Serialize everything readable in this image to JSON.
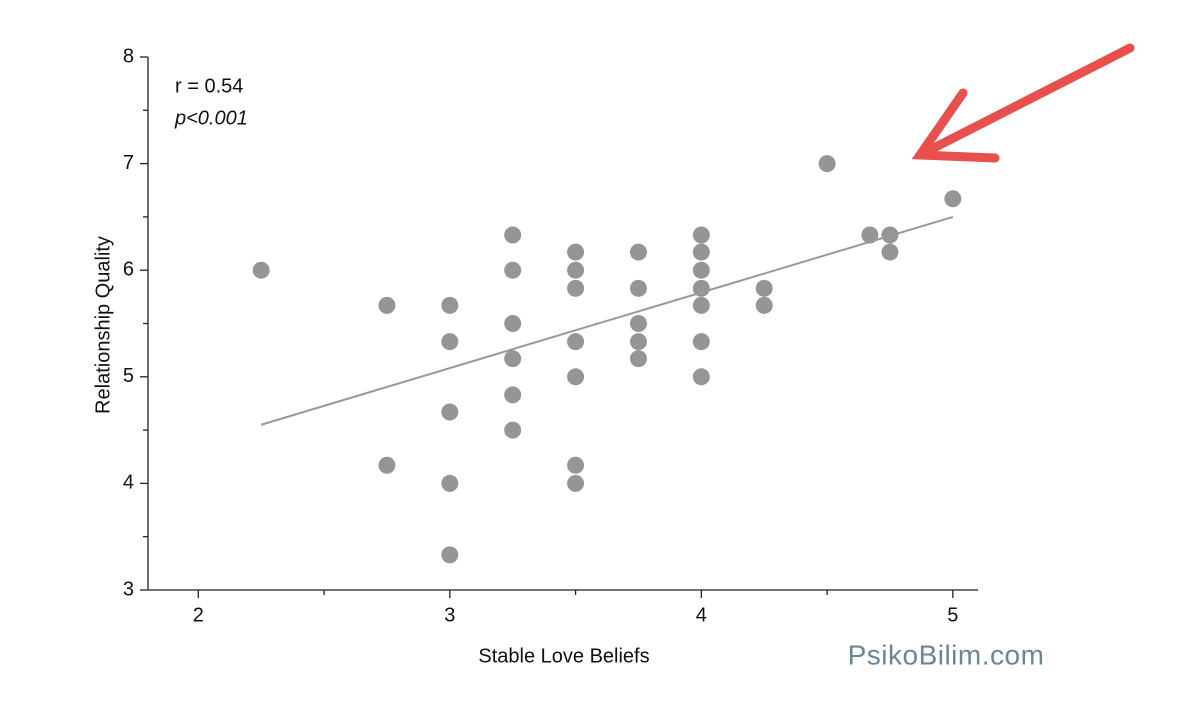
{
  "chart_data": {
    "type": "scatter",
    "x_label": "Stable Love Beliefs",
    "y_label": "Relationship Quality",
    "annotations": [
      "r = 0.54",
      "p<0.001"
    ],
    "watermark": "PsikoBilim.com",
    "color": "#7a7a7a",
    "x": [
      2.25,
      2.75,
      2.75,
      3,
      3,
      3,
      3,
      3,
      3.25,
      3.25,
      3.25,
      3.25,
      3.25,
      3.25,
      3.5,
      3.5,
      3.5,
      3.5,
      3.5,
      3.5,
      3.5,
      3.75,
      3.75,
      3.75,
      3.75,
      3.75,
      4,
      4,
      4,
      4,
      4,
      4,
      4,
      4.25,
      4.25,
      4.5,
      4.67,
      4.75,
      4.75,
      5
    ],
    "y": [
      6.0,
      5.67,
      4.17,
      5.67,
      5.33,
      4.67,
      4.0,
      3.33,
      6.33,
      6.0,
      5.5,
      5.17,
      4.83,
      4.5,
      6.17,
      6.0,
      5.83,
      5.33,
      5.0,
      4.17,
      4.0,
      6.17,
      5.83,
      5.5,
      5.33,
      5.17,
      6.33,
      6.17,
      6.0,
      5.83,
      5.67,
      5.33,
      5.0,
      5.83,
      5.67,
      7.0,
      6.33,
      6.33,
      6.17,
      6.67
    ],
    "trend_line": {
      "x": [
        2.25,
        5
      ],
      "y": [
        4.55,
        6.5
      ],
      "color": "#999999"
    },
    "xlim": [
      1.8,
      5.1
    ],
    "xticks": [
      2,
      3,
      4,
      5
    ],
    "xminorticks": [
      2.5,
      3.5,
      4.5
    ],
    "ylim": [
      3,
      8
    ],
    "yticks": [
      3,
      4,
      5,
      6,
      7,
      8
    ],
    "yminorticks": [
      3.5,
      4.5,
      5.5,
      6.5,
      7.5
    ]
  }
}
